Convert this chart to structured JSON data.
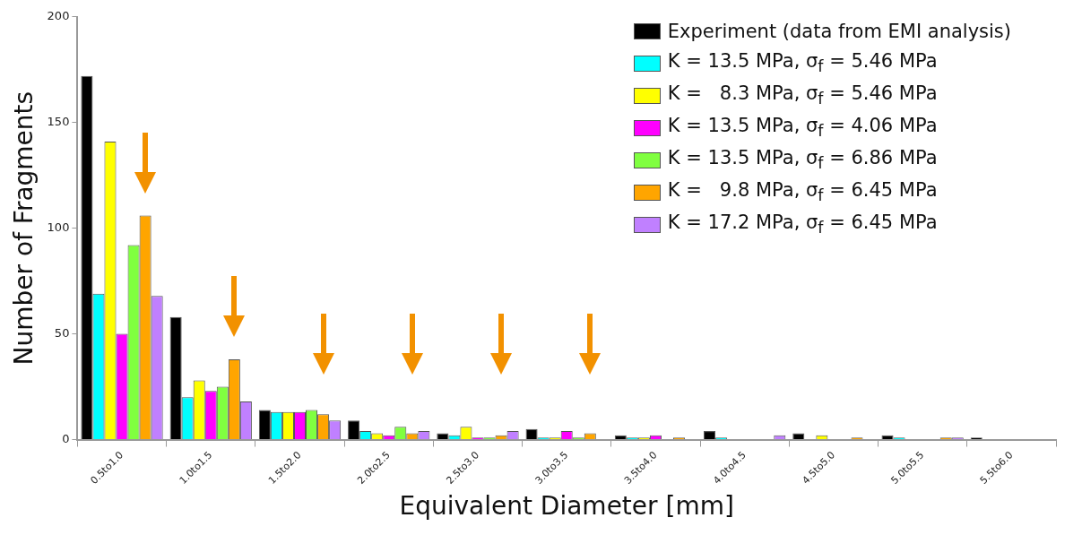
{
  "chart_data": {
    "type": "bar",
    "xlabel": "Equivalent Diameter [mm]",
    "ylabel": "Number of Fragments",
    "categories": [
      "0.5to1.0",
      "1.0to1.5",
      "1.5to2.0",
      "2.0to2.5",
      "2.5to3.0",
      "3.0to3.5",
      "3.5to4.0",
      "4.0to4.5",
      "4.5to5.0",
      "5.0to5.5",
      "5.5to6.0"
    ],
    "series": [
      {
        "name": "Experiment (data from EMI analysis)",
        "color": "#000000",
        "values": [
          172,
          58,
          14,
          9,
          3,
          5,
          2,
          4,
          3,
          2,
          1
        ]
      },
      {
        "name": "K = 13.5 MPa, σ$_{f}$ = 5.46 MPa",
        "color": "#00ffff",
        "values": [
          69,
          20,
          13,
          4,
          2,
          1,
          1,
          1,
          0,
          1,
          0
        ]
      },
      {
        "name": "K =   8.3 MPa, σ$_{f}$ = 5.46 MPa",
        "color": "#ffff00",
        "values": [
          141,
          28,
          13,
          3,
          6,
          1,
          1,
          0,
          2,
          0,
          0
        ]
      },
      {
        "name": "K = 13.5 MPa, σ$_{f}$ = 4.06 MPa",
        "color": "#ff00ff",
        "values": [
          50,
          23,
          13,
          2,
          1,
          4,
          2,
          0,
          0,
          0,
          0
        ]
      },
      {
        "name": "K = 13.5 MPa, σ$_{f}$ = 6.86 MPa",
        "color": "#80ff40",
        "values": [
          92,
          25,
          14,
          6,
          1,
          1,
          0,
          0,
          0,
          0,
          0
        ]
      },
      {
        "name": "K =   9.8 MPa, σ$_{f}$ = 6.45 MPa",
        "color": "#ffa500",
        "values": [
          106,
          38,
          12,
          3,
          2,
          3,
          1,
          0,
          1,
          1,
          0
        ]
      },
      {
        "name": "K = 17.2 MPa, σ$_{f}$ = 6.45 MPa",
        "color": "#c080ff",
        "values": [
          68,
          18,
          9,
          4,
          4,
          0,
          0,
          2,
          0,
          1,
          0
        ]
      }
    ],
    "ylim": [
      0,
      200
    ],
    "yticks": [
      0,
      50,
      100,
      150,
      200
    ],
    "grid": false,
    "legend": "top right"
  }
}
